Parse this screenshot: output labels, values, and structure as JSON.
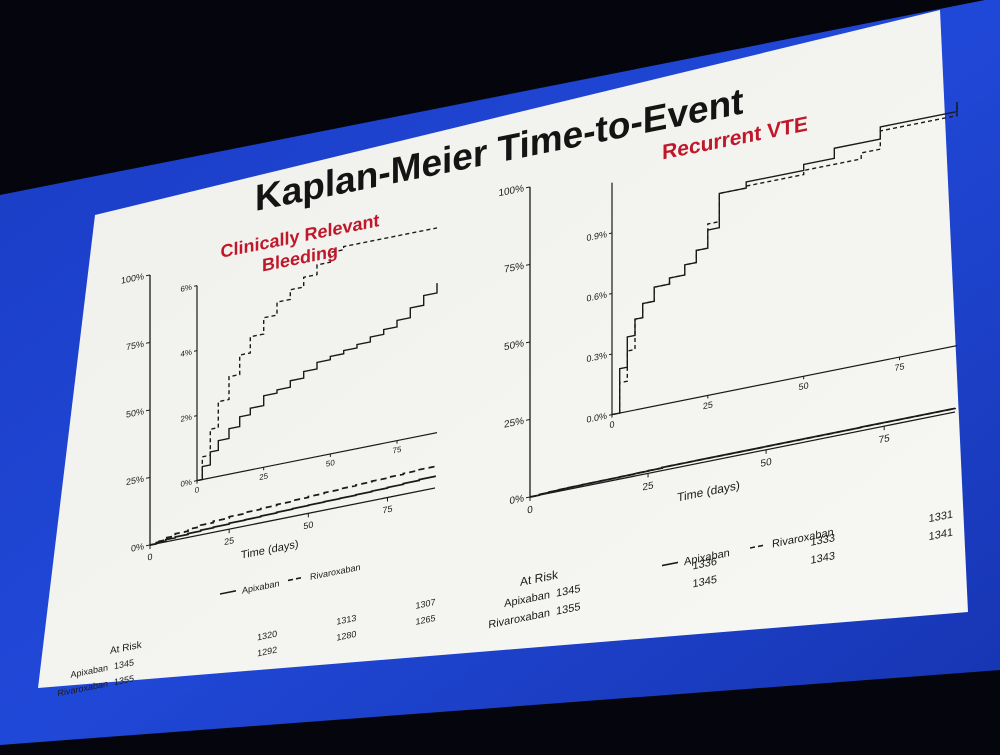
{
  "title": "Kaplan-Meier Time-to-Event",
  "colors": {
    "accent_red": "#c0182a",
    "screen_blue": "#1c3fd0",
    "ink": "#1a1a1a",
    "paper": "#f4f4f0"
  },
  "chart_data": [
    {
      "type": "line",
      "title_lines": [
        "Clinically Relevant",
        "Bleeding"
      ],
      "xlabel": "Time (days)",
      "x_ticks": [
        "0",
        "25",
        "50",
        "75"
      ],
      "y_ticks": [
        "0%",
        "25%",
        "50%",
        "75%",
        "100%"
      ],
      "inset_x_ticks": [
        "0",
        "25",
        "50",
        "75"
      ],
      "inset_y_ticks": [
        "0%",
        "2%",
        "4%",
        "6%"
      ],
      "xlim": [
        0,
        90
      ],
      "ylim": [
        0,
        100
      ],
      "inset_ylim": [
        0,
        6
      ],
      "legend": "bottom",
      "legend_labels": [
        "Apixaban",
        "Rivaroxaban"
      ],
      "series": [
        {
          "name": "Apixaban",
          "style": "solid",
          "x": [
            0,
            2,
            5,
            8,
            12,
            16,
            20,
            25,
            30,
            35,
            40,
            45,
            50,
            55,
            60,
            65,
            70,
            75,
            80,
            85,
            90
          ],
          "y": [
            0,
            0.4,
            0.8,
            1.1,
            1.4,
            1.7,
            1.9,
            2.2,
            2.3,
            2.5,
            2.7,
            2.9,
            3.0,
            3.1,
            3.2,
            3.35,
            3.5,
            3.7,
            4.0,
            4.3,
            4.6
          ]
        },
        {
          "name": "Rivaroxaban",
          "style": "dashed",
          "x": [
            0,
            2,
            5,
            8,
            12,
            16,
            20,
            25,
            30,
            35,
            40,
            45,
            50,
            55,
            60,
            65,
            70,
            75,
            80,
            85,
            90
          ],
          "y": [
            0,
            0.7,
            1.5,
            2.3,
            3.0,
            3.6,
            4.1,
            4.6,
            5.0,
            5.3,
            5.6,
            5.9,
            6.2,
            6.45,
            6.7,
            6.95,
            7.2,
            7.45,
            7.7,
            7.95,
            8.2
          ]
        }
      ],
      "at_risk": {
        "label": "At Risk",
        "rows": [
          {
            "name": "Apixaban",
            "values": [
              "1345",
              "1320",
              "1313",
              "1307"
            ]
          },
          {
            "name": "Rivaroxaban",
            "values": [
              "1355",
              "1292",
              "1280",
              "1265"
            ]
          }
        ]
      }
    },
    {
      "type": "line",
      "title_lines": [
        "Recurrent VTE"
      ],
      "xlabel": "Time (days)",
      "x_ticks": [
        "0",
        "25",
        "50",
        "75"
      ],
      "y_ticks": [
        "0%",
        "25%",
        "50%",
        "75%",
        "100%"
      ],
      "inset_x_ticks": [
        "0",
        "25",
        "50",
        "75"
      ],
      "inset_y_ticks": [
        "0.0%",
        "0.3%",
        "0.6%",
        "0.9%"
      ],
      "xlim": [
        0,
        90
      ],
      "ylim": [
        0,
        100
      ],
      "inset_ylim": [
        0,
        1.15
      ],
      "legend": "bottom",
      "legend_labels": [
        "Apixaban",
        "Rivaroxaban"
      ],
      "series": [
        {
          "name": "Apixaban",
          "style": "solid",
          "x": [
            0,
            2,
            4,
            6,
            8,
            11,
            15,
            19,
            22,
            25,
            28,
            35,
            50,
            58,
            70,
            90
          ],
          "y": [
            0,
            0.22,
            0.37,
            0.45,
            0.52,
            0.59,
            0.62,
            0.67,
            0.73,
            0.82,
            0.99,
            1.02,
            1.05,
            1.1,
            1.16,
            1.25
          ]
        },
        {
          "name": "Rivaroxaban",
          "style": "dashed",
          "x": [
            0,
            2,
            4,
            6,
            8,
            11,
            15,
            19,
            22,
            25,
            28,
            35,
            50,
            65,
            70,
            90
          ],
          "y": [
            0,
            0.15,
            0.3,
            0.45,
            0.52,
            0.59,
            0.62,
            0.67,
            0.73,
            0.85,
            0.99,
            1.0,
            1.02,
            1.05,
            1.14,
            1.22
          ]
        }
      ],
      "at_risk": {
        "label": "At Risk",
        "rows": [
          {
            "name": "Apixaban",
            "values": [
              "1345",
              "1336",
              "1333",
              "1331"
            ]
          },
          {
            "name": "Rivaroxaban",
            "values": [
              "1355",
              "1345",
              "1343",
              "1341"
            ]
          }
        ]
      }
    }
  ]
}
